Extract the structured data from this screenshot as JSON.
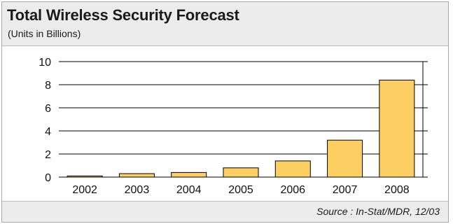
{
  "chart_data": {
    "type": "bar",
    "title": "Total Wireless Security Forecast",
    "subtitle": "(Units in Billions)",
    "categories": [
      "2002",
      "2003",
      "2004",
      "2005",
      "2006",
      "2007",
      "2008"
    ],
    "values": [
      0.1,
      0.3,
      0.4,
      0.8,
      1.4,
      3.2,
      8.4
    ],
    "ylim": [
      0,
      10
    ],
    "yticks": [
      0,
      2,
      4,
      6,
      8,
      10
    ],
    "grid": true,
    "source": "Source : In-Stat/MDR, 12/03",
    "colors": {
      "bar_fill": "#fdcf62",
      "bar_stroke": "#000000",
      "grid": "#000000"
    }
  }
}
